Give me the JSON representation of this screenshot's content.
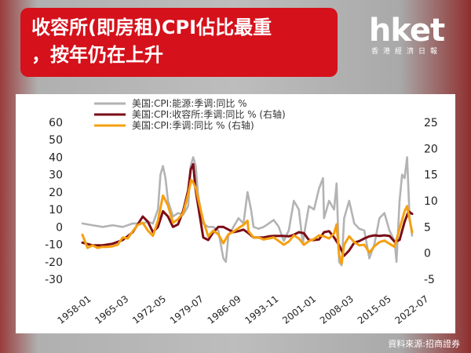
{
  "headline": {
    "line1": "收容所(即房租)CPI佔比最重",
    "line2": "，按年仍在上升"
  },
  "logo": {
    "main": "hket",
    "sub": "香港經濟日報"
  },
  "source": "資料來源:招商證券",
  "colors": {
    "energy": "#b3b3b3",
    "shelter": "#7a0c16",
    "cpi": "#f5a011",
    "headline_bg": "#d5111b"
  },
  "chart_data": {
    "type": "line",
    "title": "",
    "x_tick_labels": [
      "1958-01",
      "1965-03",
      "1972-05",
      "1979-07",
      "1986-09",
      "1993-11",
      "2001-01",
      "2008-03",
      "2015-05",
      "2022-07"
    ],
    "x_range": [
      1958.0,
      2023.5
    ],
    "y_left": {
      "range": [
        -30,
        60
      ],
      "ticks": [
        -30,
        -20,
        -10,
        0,
        10,
        20,
        30,
        40,
        50,
        60
      ]
    },
    "y_right": {
      "range": [
        -5,
        25
      ],
      "ticks": [
        -5,
        0,
        5,
        10,
        15,
        20,
        25
      ]
    },
    "legend_position": "top",
    "series": [
      {
        "name": "美国:CPI:能源:季调:同比 %",
        "axis": "left",
        "color": "#b3b3b3",
        "x": [
          1958,
          1960,
          1962,
          1964,
          1966,
          1968,
          1970,
          1971,
          1972,
          1973,
          1973.5,
          1974,
          1974.5,
          1975,
          1976,
          1977,
          1978,
          1979,
          1979.5,
          1980,
          1980.5,
          1981,
          1982,
          1983,
          1984,
          1985,
          1986,
          1986.5,
          1987,
          1988,
          1989,
          1990,
          1990.8,
          1991.5,
          1992,
          1993,
          1994,
          1995,
          1996,
          1997,
          1998,
          1999,
          2000,
          2001,
          2001.8,
          2002,
          2003,
          2004,
          2005,
          2005.8,
          2006,
          2007,
          2008,
          2008.5,
          2009,
          2009.5,
          2010,
          2011,
          2012,
          2013,
          2014,
          2015,
          2016,
          2017,
          2018,
          2019,
          2020,
          2020.4,
          2021,
          2021.5,
          2022,
          2022.5,
          2023,
          2023.5
        ],
        "y": [
          2,
          1,
          0,
          1,
          0,
          2,
          2,
          3,
          2,
          10,
          30,
          35,
          28,
          15,
          6,
          8,
          7,
          12,
          35,
          40,
          35,
          18,
          2,
          0,
          0,
          -2,
          -18,
          -20,
          -5,
          0,
          5,
          2,
          20,
          10,
          0,
          -1,
          0,
          2,
          4,
          0,
          -8,
          -2,
          15,
          10,
          -10,
          -5,
          12,
          10,
          22,
          28,
          5,
          15,
          10,
          25,
          -20,
          -22,
          5,
          15,
          2,
          -1,
          -2,
          -18,
          -10,
          5,
          8,
          -2,
          -8,
          -20,
          15,
          30,
          28,
          40,
          5,
          -5
        ]
      },
      {
        "name": "美国:CPI:收容所:季调:同比 % (右轴)",
        "axis": "right",
        "color": "#7a0c16",
        "x": [
          1958,
          1960,
          1962,
          1964,
          1966,
          1968,
          1970,
          1971,
          1972,
          1973,
          1974,
          1975,
          1976,
          1977,
          1978,
          1979,
          1979.5,
          1980,
          1980.5,
          1981,
          1982,
          1983,
          1984,
          1985,
          1986,
          1987,
          1988,
          1989,
          1990,
          1991,
          1992,
          1993,
          1994,
          1995,
          1996,
          1997,
          1998,
          1999,
          2000,
          2001,
          2002,
          2003,
          2004,
          2005,
          2006,
          2007,
          2008,
          2009,
          2010,
          2011,
          2012,
          2013,
          2014,
          2015,
          2016,
          2017,
          2018,
          2019,
          2020,
          2021,
          2022,
          2022.8,
          2023.5
        ],
        "y": [
          2,
          1.5,
          1.5,
          1.8,
          2.5,
          4,
          7,
          6,
          4,
          5,
          8,
          7,
          5,
          5.5,
          8,
          12,
          16,
          17,
          12,
          9,
          3,
          2.5,
          4,
          5,
          5,
          4.5,
          4,
          4.2,
          4.5,
          3.8,
          3,
          3,
          3,
          3.2,
          3.3,
          3.3,
          3.3,
          3.2,
          3.5,
          4,
          3.8,
          2.5,
          2.5,
          2.6,
          4,
          4.2,
          3,
          1.5,
          -0.5,
          0.5,
          2,
          2.3,
          2.8,
          3.2,
          3.4,
          3.3,
          3.4,
          3.3,
          2.2,
          2.5,
          6,
          8,
          7.5
        ]
      },
      {
        "name": "美国:CPI:季调:同比 % (右轴)",
        "axis": "right",
        "color": "#f5a011",
        "x": [
          1958,
          1959,
          1960,
          1961,
          1962,
          1963,
          1964,
          1965,
          1966,
          1967,
          1968,
          1969,
          1970,
          1971,
          1972,
          1973,
          1974,
          1975,
          1976,
          1977,
          1978,
          1979,
          1979.6,
          1980,
          1980.5,
          1981,
          1982,
          1983,
          1984,
          1985,
          1986,
          1987,
          1988,
          1989,
          1990,
          1990.8,
          1991,
          1992,
          1993,
          1994,
          1995,
          1996,
          1997,
          1998,
          1999,
          2000,
          2001,
          2002,
          2003,
          2004,
          2005,
          2006,
          2007,
          2008,
          2008.5,
          2009,
          2009.5,
          2010,
          2011,
          2012,
          2013,
          2014,
          2015,
          2016,
          2017,
          2018,
          2019,
          2020,
          2021,
          2022,
          2022.5,
          2023,
          2023.5
        ],
        "y": [
          3.5,
          1,
          1.5,
          1,
          1.2,
          1.2,
          1.3,
          1.6,
          3,
          2.8,
          4.2,
          5.4,
          5.8,
          4.3,
          3.3,
          6.2,
          11,
          9.1,
          5.8,
          6.5,
          7.6,
          11.3,
          14,
          13.5,
          12.5,
          10.3,
          6.2,
          3.2,
          4.3,
          3.6,
          1.9,
          3.6,
          4.1,
          4.8,
          5.4,
          6.2,
          4.2,
          3,
          3,
          2.6,
          2.8,
          3,
          2.3,
          1.6,
          2.2,
          3.4,
          2.8,
          1.6,
          2.3,
          2.7,
          3.4,
          3.2,
          2.8,
          3.8,
          5.5,
          -0.4,
          -2,
          1.6,
          3.2,
          2.1,
          1.5,
          1.6,
          0.1,
          1.3,
          2.1,
          2.4,
          1.8,
          1.2,
          4.7,
          8.0,
          9.0,
          6.4,
          4
        ]
      }
    ]
  }
}
